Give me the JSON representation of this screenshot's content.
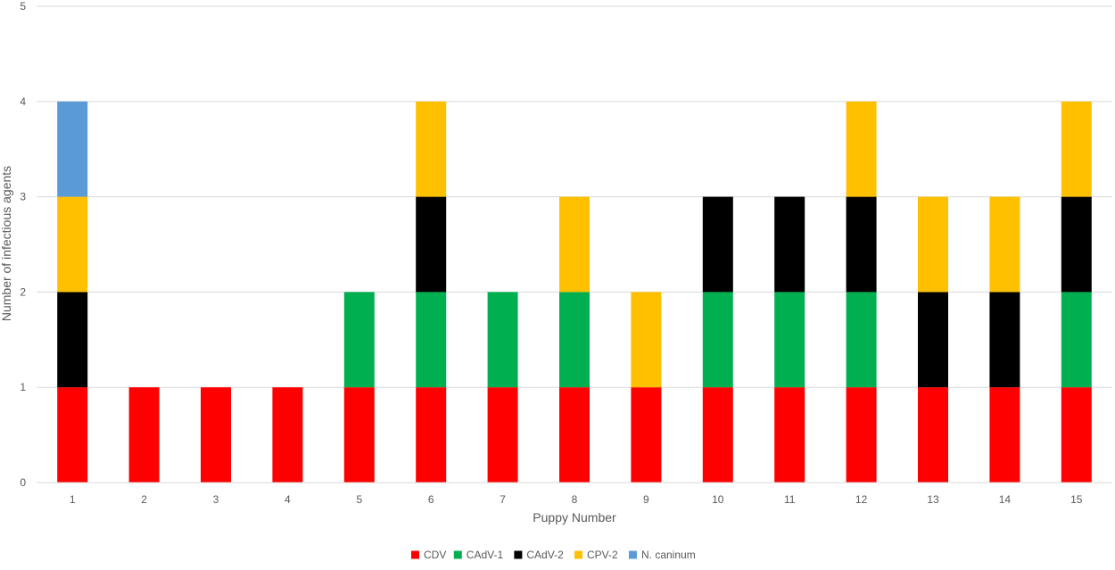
{
  "chart_data": {
    "type": "bar",
    "stacked": true,
    "xlabel": "Puppy Number",
    "ylabel": "Number of infectious agents",
    "ylim": [
      0,
      5
    ],
    "yticks": [
      0,
      1,
      2,
      3,
      4,
      5
    ],
    "grid": true,
    "legend_position": "bottom",
    "categories": [
      "1",
      "2",
      "3",
      "4",
      "5",
      "6",
      "7",
      "8",
      "9",
      "10",
      "11",
      "12",
      "13",
      "14",
      "15"
    ],
    "series": [
      {
        "name": "CDV",
        "color": "#ff0000",
        "values": [
          1,
          1,
          1,
          1,
          1,
          1,
          1,
          1,
          1,
          1,
          1,
          1,
          1,
          1,
          1
        ]
      },
      {
        "name": "CAdV-1",
        "color": "#00b050",
        "values": [
          0,
          0,
          0,
          0,
          1,
          1,
          1,
          1,
          0,
          1,
          1,
          1,
          0,
          0,
          1
        ]
      },
      {
        "name": "CAdV-2",
        "color": "#000000",
        "values": [
          1,
          0,
          0,
          0,
          0,
          1,
          0,
          0,
          0,
          1,
          1,
          1,
          1,
          1,
          1
        ]
      },
      {
        "name": "CPV-2",
        "color": "#ffc000",
        "values": [
          1,
          0,
          0,
          0,
          0,
          1,
          0,
          1,
          1,
          0,
          0,
          1,
          1,
          1,
          1
        ]
      },
      {
        "name": "N. caninum",
        "color": "#5b9bd5",
        "values": [
          1,
          0,
          0,
          0,
          0,
          0,
          0,
          0,
          0,
          0,
          0,
          0,
          0,
          0,
          0
        ]
      }
    ]
  }
}
